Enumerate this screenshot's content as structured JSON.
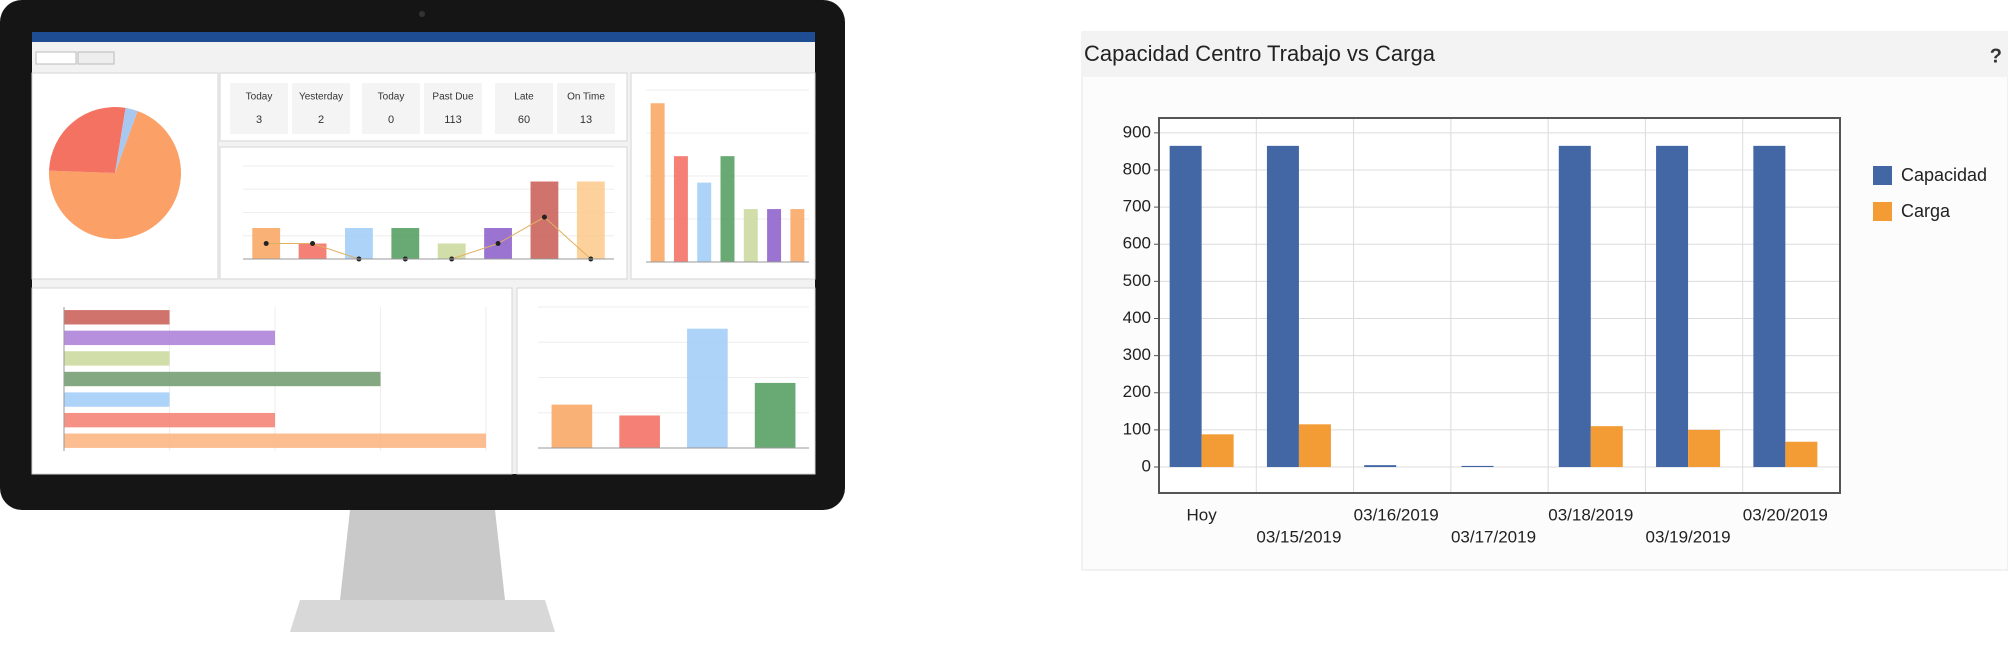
{
  "chart_data": [
    {
      "type": "bar",
      "title": "Capacidad Centro Trabajo vs Carga",
      "help": "?",
      "categories": [
        "Hoy",
        "03/15/2019",
        "03/16/2019",
        "03/17/2019",
        "03/18/2019",
        "03/19/2019",
        "03/20/2019"
      ],
      "series": [
        {
          "name": "Capacidad",
          "color": "#4366a5",
          "values": [
            865,
            865,
            5,
            3,
            865,
            865,
            865
          ]
        },
        {
          "name": "Carga",
          "color": "#f39c35",
          "values": [
            88,
            115,
            0,
            0,
            110,
            100,
            68
          ]
        }
      ],
      "ylim": [
        -70,
        940
      ],
      "yticks": [
        0,
        100,
        200,
        300,
        400,
        500,
        600,
        700,
        800,
        900
      ],
      "grid": true,
      "legend": "right"
    },
    {
      "type": "pie",
      "values": [
        70,
        27,
        3
      ],
      "colors": [
        "#fba066",
        "#f37262",
        "#a9c8f0"
      ]
    },
    {
      "type": "bar",
      "values": [
        2,
        1,
        2,
        2,
        1,
        2,
        5,
        5
      ],
      "ylim": [
        0,
        6
      ],
      "colors": [
        "#f9a35e",
        "#f36b5e",
        "#9fcbf7",
        "#4f9a5a",
        "#c9d89a",
        "#8a5cc9",
        "#c85a52",
        "#fbc98a"
      ],
      "line": [
        1,
        1,
        0,
        0,
        0,
        1,
        2.7,
        0
      ]
    },
    {
      "type": "bar",
      "values": [
        6,
        4,
        3,
        4,
        2,
        2,
        2
      ],
      "ylim": [
        0,
        6.5
      ],
      "colors": [
        "#f9a35e",
        "#f36b5e",
        "#9fcbf7",
        "#4f9a5a",
        "#c9d89a",
        "#8a5cc9",
        "#f9a35e"
      ]
    },
    {
      "type": "barh",
      "values": [
        1,
        2,
        1,
        3,
        1,
        2,
        4
      ],
      "ylim": [
        0,
        4
      ],
      "colors": [
        "#c85a52",
        "#a97cd6",
        "#c9d89a",
        "#6e9a6c",
        "#9fcbf7",
        "#f37f70",
        "#fbb27e"
      ]
    },
    {
      "type": "bar",
      "values": [
        4,
        3,
        11,
        6
      ],
      "ylim": [
        0,
        13
      ],
      "colors": [
        "#f9a35e",
        "#f36b5e",
        "#9fcbf7",
        "#4f9a5a"
      ]
    }
  ],
  "dashboard": {
    "kpis": [
      {
        "label": "Today",
        "value": "3"
      },
      {
        "label": "Yesterday",
        "value": "2"
      },
      {
        "label": "Today",
        "value": "0"
      },
      {
        "label": "Past Due",
        "value": "113"
      },
      {
        "label": "Late",
        "value": "60"
      },
      {
        "label": "On Time",
        "value": "13"
      }
    ]
  }
}
